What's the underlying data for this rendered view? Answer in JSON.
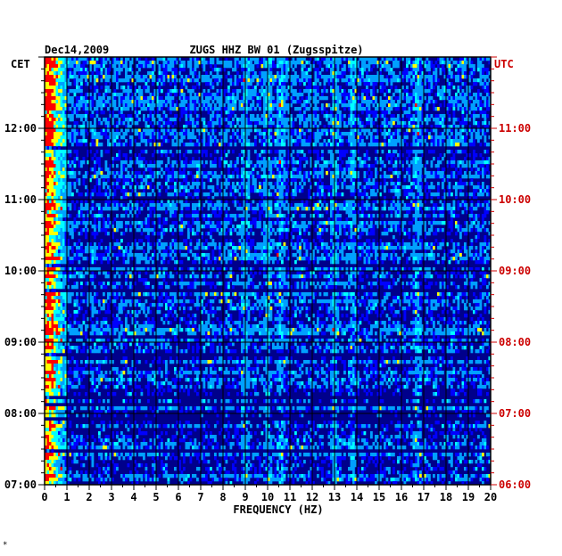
{
  "chart_data": {
    "type": "heatmap",
    "date": "Dec14,2009",
    "title": "ZUGS HHZ BW 01 (Zugsspitze)",
    "xlabel": "FREQUENCY (HZ)",
    "xlim": [
      0,
      20
    ],
    "x_ticks": [
      "0",
      "1",
      "2",
      "3",
      "4",
      "5",
      "6",
      "7",
      "8",
      "9",
      "10",
      "11",
      "12",
      "13",
      "14",
      "15",
      "16",
      "17",
      "18",
      "19",
      "20"
    ],
    "left_axis": {
      "label": "CET",
      "ticks": [
        "07:00",
        "08:00",
        "09:00",
        "10:00",
        "11:00",
        "12:00"
      ],
      "color": "#000000"
    },
    "right_axis": {
      "label": "UTC",
      "ticks": [
        "06:00",
        "07:00",
        "08:00",
        "09:00",
        "10:00",
        "11:00"
      ],
      "color": "#cc0000"
    },
    "time_range_cet": [
      "07:00",
      "13:00"
    ],
    "grid": true,
    "colormap": [
      "#00008b",
      "#0000ff",
      "#00a0ff",
      "#00ffff",
      "#ffff00",
      "#ff0000"
    ],
    "dominant_features_hz": [
      0.3,
      9.0,
      10.0,
      10.6,
      13.0,
      13.8,
      16.7
    ],
    "footer_mark": "*"
  }
}
